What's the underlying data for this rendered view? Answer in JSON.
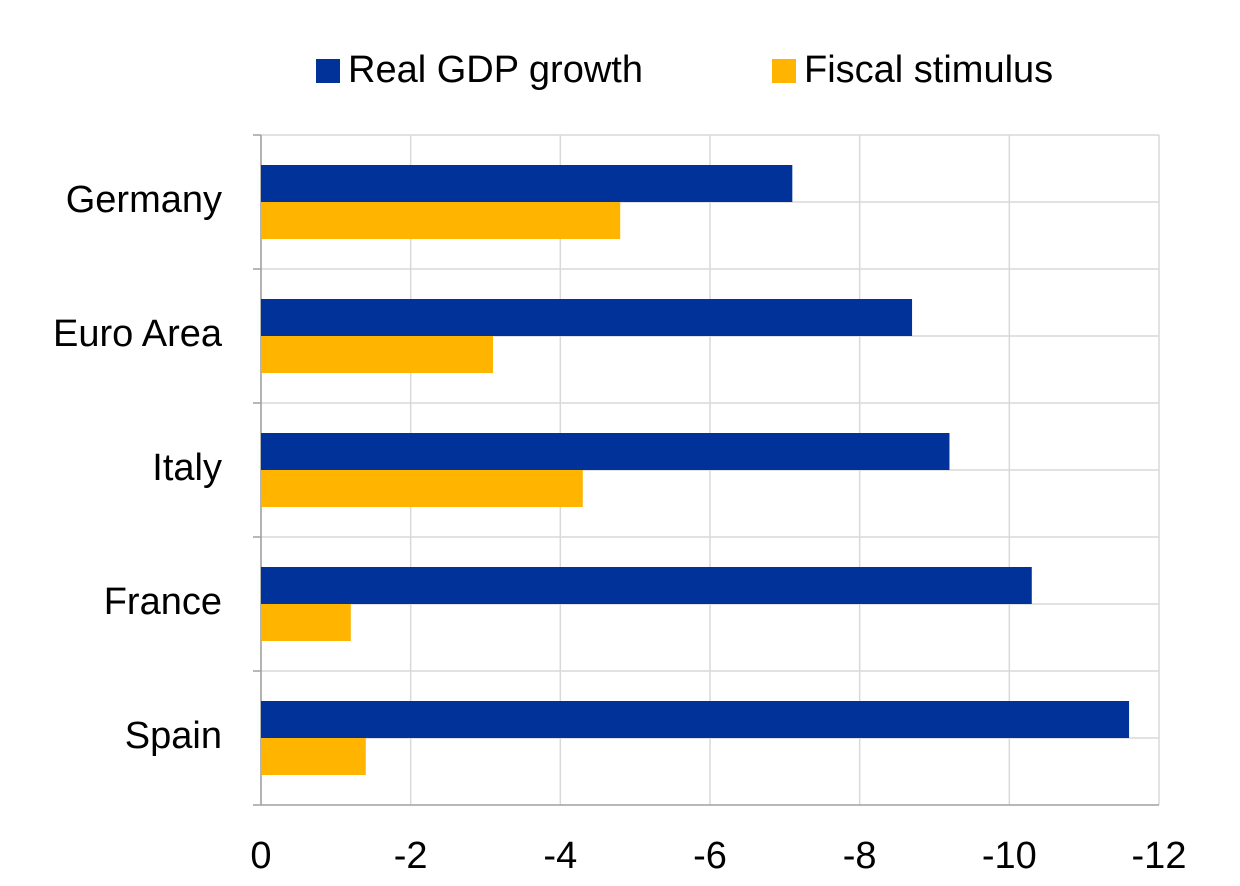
{
  "chart_data": {
    "type": "hbar",
    "categories": [
      "Germany",
      "Euro Area",
      "Italy",
      "France",
      "Spain"
    ],
    "series": [
      {
        "name": "Real GDP growth",
        "color": "#003299",
        "values": [
          -7.1,
          -8.7,
          -9.2,
          -10.3,
          -11.6
        ]
      },
      {
        "name": "Fiscal stimulus",
        "color": "#ffb400",
        "values": [
          -4.8,
          -3.1,
          -4.3,
          -1.2,
          -1.4
        ]
      }
    ],
    "xlim": [
      0,
      -12
    ],
    "xticks": [
      0,
      -2,
      -4,
      -6,
      -8,
      -10,
      -12
    ],
    "grid": true,
    "legend": "top"
  }
}
